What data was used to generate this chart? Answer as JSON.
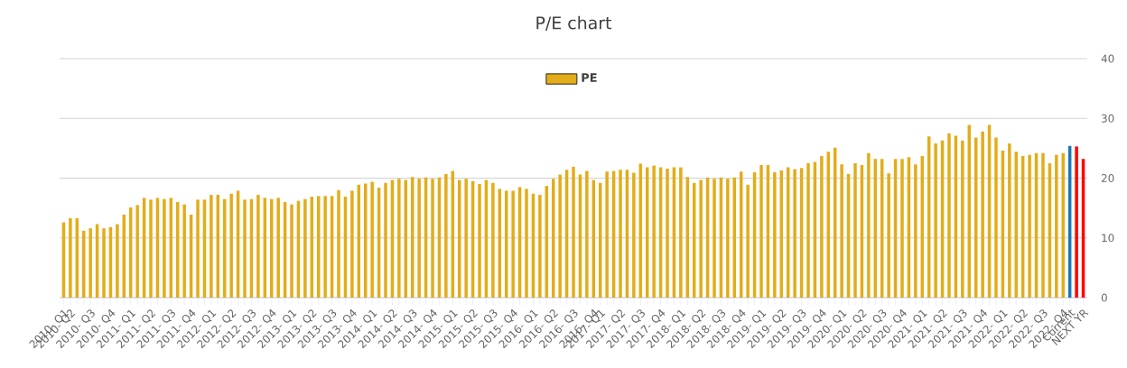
{
  "chart_data": {
    "type": "bar",
    "title": "P/E chart",
    "categories": [
      "2010- Q1",
      "2010- Q2",
      null,
      null,
      "2010- Q3",
      null,
      null,
      "2010- Q4",
      null,
      null,
      "2011- Q1",
      null,
      null,
      "2011- Q2",
      null,
      null,
      "2011- Q3",
      null,
      null,
      "2011- Q4",
      null,
      null,
      "2012- Q1",
      null,
      null,
      "2012- Q2",
      null,
      null,
      "2012- Q3",
      null,
      null,
      "2012- Q4",
      null,
      null,
      "2013- Q1",
      null,
      null,
      "2013- Q2",
      null,
      null,
      "2013- Q3",
      null,
      null,
      "2013- Q4",
      null,
      null,
      "2014- Q1",
      null,
      null,
      "2014- Q2",
      null,
      null,
      "2014- Q3",
      null,
      null,
      "2014- Q4",
      null,
      null,
      "2015- Q1",
      null,
      null,
      "2015- Q2",
      null,
      null,
      "2015- Q3",
      null,
      null,
      "2015- Q4",
      null,
      null,
      "2016- Q1",
      null,
      null,
      "2016- Q2",
      null,
      null,
      "2016- Q3",
      null,
      null,
      "2016- Q4",
      "2017- Q1",
      null,
      null,
      "2017- Q2",
      null,
      null,
      "2017- Q3",
      null,
      null,
      "2017- Q4",
      null,
      null,
      "2018- Q1",
      null,
      null,
      "2018- Q2",
      null,
      null,
      "2018- Q3",
      null,
      null,
      "2018- Q4",
      null,
      null,
      "2019- Q1",
      null,
      null,
      "2019- Q2",
      null,
      null,
      "2019- Q3",
      null,
      null,
      "2019- Q4",
      null,
      null,
      "2020- Q1",
      null,
      null,
      "2020- Q2",
      null,
      null,
      "2020- Q3",
      null,
      null,
      "2020- Q4",
      null,
      null,
      "2021- Q1",
      null,
      null,
      "2021- Q2",
      null,
      null,
      "2021- Q3",
      null,
      null,
      "2021- Q4",
      null,
      null,
      "2022- Q1",
      null,
      null,
      "2022- Q2",
      null,
      null,
      "2022- Q3",
      null,
      null,
      "2022- Q4",
      "Current",
      null,
      "NEXT YR"
    ],
    "series": [
      {
        "name": "PE",
        "color": "#e3ac1a",
        "values": [
          12.6,
          13.3,
          13.3,
          11.2,
          11.6,
          12.3,
          11.6,
          11.8,
          12.3,
          13.9,
          15.1,
          15.5,
          16.7,
          16.4,
          16.7,
          16.5,
          16.7,
          16.0,
          15.6,
          13.9,
          16.4,
          16.4,
          17.2,
          17.2,
          16.5,
          17.4,
          17.9,
          16.4,
          16.5,
          17.2,
          16.7,
          16.5,
          16.7,
          16.0,
          15.6,
          16.2,
          16.5,
          16.9,
          17.0,
          17.0,
          17.0,
          18.0,
          16.9,
          17.9,
          18.9,
          19.1,
          19.4,
          18.4,
          19.2,
          19.7,
          19.9,
          19.7,
          20.2,
          19.9,
          20.1,
          19.9,
          20.1,
          20.7,
          21.2,
          19.7,
          19.9,
          19.5,
          19.0,
          19.7,
          19.2,
          18.2,
          17.9,
          17.9,
          18.5,
          18.2,
          17.4,
          17.2,
          18.7,
          19.9,
          20.6,
          21.4,
          21.9,
          20.6,
          21.2,
          19.7,
          19.2,
          21.1,
          21.2,
          21.4,
          21.4,
          20.9,
          22.4,
          21.8,
          22.1,
          21.8,
          21.6,
          21.8,
          21.8,
          20.2,
          19.2,
          19.7,
          20.1,
          19.9,
          20.1,
          19.9,
          20.1,
          21.1,
          18.9,
          21.0,
          22.2,
          22.2,
          21.0,
          21.3,
          21.8,
          21.5,
          21.7,
          22.5,
          22.7,
          23.7,
          24.4,
          25.1,
          22.3,
          20.7,
          22.5,
          22.2,
          24.2,
          23.2,
          23.2,
          20.8,
          23.2,
          23.2,
          23.5,
          22.3,
          23.7,
          27.0,
          25.8,
          26.3,
          27.5,
          27.1,
          26.3,
          28.9,
          26.8,
          27.8,
          28.9,
          26.8,
          24.6,
          25.8,
          24.4,
          23.7,
          23.9,
          24.2,
          24.2,
          22.5,
          23.9,
          24.2,
          25.4,
          25.3,
          23.2
        ],
        "colors": [
          "#e3ac1a",
          "#e3ac1a",
          "#e3ac1a",
          "#e3ac1a",
          "#e3ac1a",
          "#e3ac1a",
          "#e3ac1a",
          "#e3ac1a",
          "#e3ac1a",
          "#e3ac1a",
          "#e3ac1a",
          "#e3ac1a",
          "#e3ac1a",
          "#e3ac1a",
          "#e3ac1a",
          "#e3ac1a",
          "#e3ac1a",
          "#e3ac1a",
          "#e3ac1a",
          "#e3ac1a",
          "#e3ac1a",
          "#e3ac1a",
          "#e3ac1a",
          "#e3ac1a",
          "#e3ac1a",
          "#e3ac1a",
          "#e3ac1a",
          "#e3ac1a",
          "#e3ac1a",
          "#e3ac1a",
          "#e3ac1a",
          "#e3ac1a",
          "#e3ac1a",
          "#e3ac1a",
          "#e3ac1a",
          "#e3ac1a",
          "#e3ac1a",
          "#e3ac1a",
          "#e3ac1a",
          "#e3ac1a",
          "#e3ac1a",
          "#e3ac1a",
          "#e3ac1a",
          "#e3ac1a",
          "#e3ac1a",
          "#e3ac1a",
          "#e3ac1a",
          "#e3ac1a",
          "#e3ac1a",
          "#e3ac1a",
          "#e3ac1a",
          "#e3ac1a",
          "#e3ac1a",
          "#e3ac1a",
          "#e3ac1a",
          "#e3ac1a",
          "#e3ac1a",
          "#e3ac1a",
          "#e3ac1a",
          "#e3ac1a",
          "#e3ac1a",
          "#e3ac1a",
          "#e3ac1a",
          "#e3ac1a",
          "#e3ac1a",
          "#e3ac1a",
          "#e3ac1a",
          "#e3ac1a",
          "#e3ac1a",
          "#e3ac1a",
          "#e3ac1a",
          "#e3ac1a",
          "#e3ac1a",
          "#e3ac1a",
          "#e3ac1a",
          "#e3ac1a",
          "#e3ac1a",
          "#e3ac1a",
          "#e3ac1a",
          "#e3ac1a",
          "#e3ac1a",
          "#e3ac1a",
          "#e3ac1a",
          "#e3ac1a",
          "#e3ac1a",
          "#e3ac1a",
          "#e3ac1a",
          "#e3ac1a",
          "#e3ac1a",
          "#e3ac1a",
          "#e3ac1a",
          "#e3ac1a",
          "#e3ac1a",
          "#e3ac1a",
          "#e3ac1a",
          "#e3ac1a",
          "#e3ac1a",
          "#e3ac1a",
          "#e3ac1a",
          "#e3ac1a",
          "#e3ac1a",
          "#e3ac1a",
          "#e3ac1a",
          "#e3ac1a",
          "#e3ac1a",
          "#e3ac1a",
          "#e3ac1a",
          "#e3ac1a",
          "#e3ac1a",
          "#e3ac1a",
          "#e3ac1a",
          "#e3ac1a",
          "#e3ac1a",
          "#e3ac1a",
          "#e3ac1a",
          "#e3ac1a",
          "#e3ac1a",
          "#e3ac1a",
          "#e3ac1a",
          "#e3ac1a",
          "#e3ac1a",
          "#e3ac1a",
          "#e3ac1a",
          "#e3ac1a",
          "#e3ac1a",
          "#e3ac1a",
          "#e3ac1a",
          "#e3ac1a",
          "#e3ac1a",
          "#e3ac1a",
          "#e3ac1a",
          "#e3ac1a",
          "#e3ac1a",
          "#e3ac1a",
          "#e3ac1a",
          "#e3ac1a",
          "#e3ac1a",
          "#e3ac1a",
          "#e3ac1a",
          "#e3ac1a",
          "#e3ac1a",
          "#e3ac1a",
          "#e3ac1a",
          "#e3ac1a",
          "#e3ac1a",
          "#e3ac1a",
          "#e3ac1a",
          "#e3ac1a",
          "#e3ac1a",
          "#e3ac1a",
          "#1f77b4",
          "#ff0000",
          "#ff0000"
        ]
      }
    ],
    "ylim": [
      0,
      40
    ],
    "yticks": [
      0,
      10,
      20,
      30,
      40
    ],
    "grid": "y",
    "legend": "top"
  }
}
